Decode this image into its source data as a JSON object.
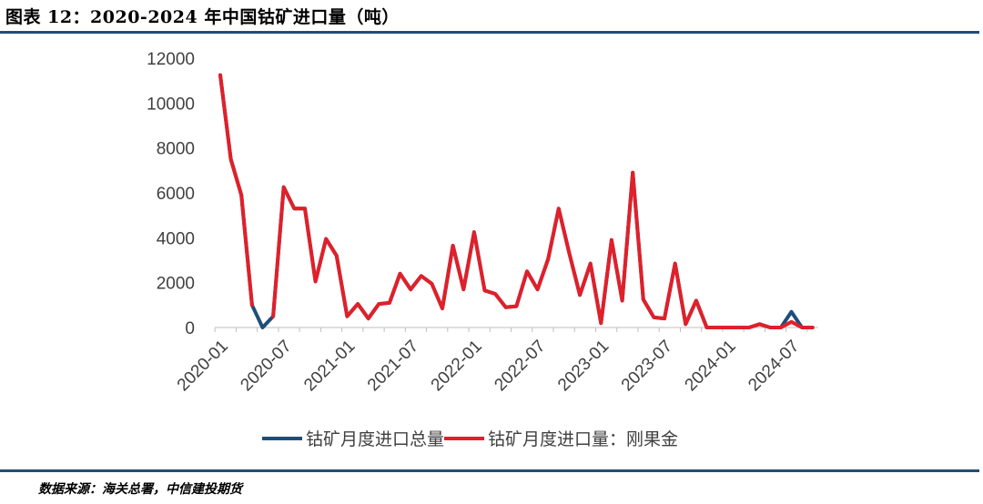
{
  "title": "图表 12：2020-2024 年中国钴矿进口量（吨）",
  "source": "数据来源：海关总署，中信建投期货",
  "chart_data": {
    "type": "line",
    "title": "图表 12：2020-2024 年中国钴矿进口量（吨）",
    "xlabel": "",
    "ylabel": "",
    "ylim": [
      0,
      12000
    ],
    "yticks": [
      0,
      2000,
      4000,
      6000,
      8000,
      10000,
      12000
    ],
    "x_tick_labels": [
      "2020-01",
      "2020-07",
      "2021-01",
      "2021-07",
      "2022-01",
      "2022-07",
      "2023-01",
      "2023-07",
      "2024-01",
      "2024-07"
    ],
    "grid": false,
    "legend_position": "bottom",
    "x": [
      "2020-01",
      "2020-02",
      "2020-03",
      "2020-04",
      "2020-05",
      "2020-06",
      "2020-07",
      "2020-08",
      "2020-09",
      "2020-10",
      "2020-11",
      "2020-12",
      "2021-01",
      "2021-02",
      "2021-03",
      "2021-04",
      "2021-05",
      "2021-06",
      "2021-07",
      "2021-08",
      "2021-09",
      "2021-10",
      "2021-11",
      "2021-12",
      "2022-01",
      "2022-02",
      "2022-03",
      "2022-04",
      "2022-05",
      "2022-06",
      "2022-07",
      "2022-08",
      "2022-09",
      "2022-10",
      "2022-11",
      "2022-12",
      "2023-01",
      "2023-02",
      "2023-03",
      "2023-04",
      "2023-05",
      "2023-06",
      "2023-07",
      "2023-08",
      "2023-09",
      "2023-10",
      "2023-11",
      "2023-12",
      "2024-01",
      "2024-02",
      "2024-03",
      "2024-04",
      "2024-05",
      "2024-06",
      "2024-07",
      "2024-08",
      "2024-09"
    ],
    "series": [
      {
        "name": "钴矿月度进口总量",
        "color": "#1f4e79",
        "values": [
          11250,
          7500,
          5900,
          1000,
          0,
          500,
          6250,
          5300,
          5300,
          2050,
          3950,
          3200,
          500,
          1050,
          400,
          1050,
          1100,
          2400,
          1700,
          2300,
          1950,
          850,
          3650,
          1700,
          4250,
          1650,
          1500,
          900,
          950,
          2500,
          1700,
          3050,
          5300,
          3300,
          1450,
          2850,
          200,
          3900,
          1200,
          6900,
          1250,
          450,
          400,
          2850,
          150,
          1200,
          0,
          0,
          0,
          0,
          0,
          150,
          0,
          0,
          700,
          0,
          0
        ]
      },
      {
        "name": "钴矿月度进口量：刚果金",
        "color": "#e0202a",
        "values": [
          11250,
          7500,
          5900,
          1000,
          null,
          500,
          6250,
          5300,
          5300,
          2050,
          3950,
          3200,
          500,
          1050,
          400,
          1050,
          1100,
          2400,
          1700,
          2300,
          1950,
          850,
          3650,
          1700,
          4250,
          1650,
          1500,
          900,
          950,
          2500,
          1700,
          3050,
          5300,
          3300,
          1450,
          2850,
          200,
          3900,
          1200,
          6900,
          1250,
          450,
          400,
          2850,
          150,
          1200,
          0,
          0,
          0,
          0,
          0,
          150,
          0,
          0,
          250,
          0,
          0
        ]
      }
    ]
  }
}
